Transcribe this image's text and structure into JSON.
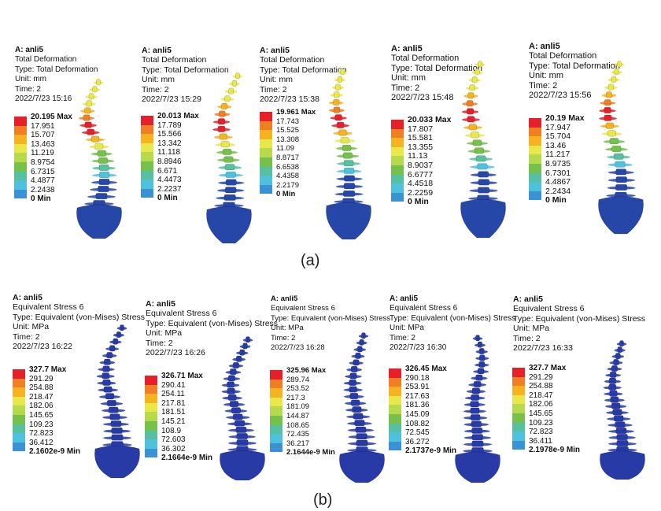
{
  "figure": {
    "row_a": {
      "label": "(a)",
      "panels": [
        {
          "system": "A: anli5",
          "title": "Total Deformation",
          "type": "Type: Total Deformation",
          "unit": "Unit: mm",
          "time": "Time: 2",
          "timestamp": "2022/7/23 15:16",
          "legend": [
            "20.195 Max",
            "17.951",
            "15.707",
            "13.463",
            "11.219",
            "8.9754",
            "6.7315",
            "4.4877",
            "2.2438",
            "0 Min"
          ]
        },
        {
          "system": "A: anli5",
          "title": "Total Deformation",
          "type": "Type: Total Deformation",
          "unit": "Unit: mm",
          "time": "Time: 2",
          "timestamp": "2022/7/23 15:29",
          "legend": [
            "20.013 Max",
            "17.789",
            "15.566",
            "13.342",
            "11.118",
            "8.8946",
            "6.671",
            "4.4473",
            "2.2237",
            "0 Min"
          ]
        },
        {
          "system": "A: anli5",
          "title": "Total Deformation",
          "type": "Type: Total Deformation",
          "unit": "Unit: mm",
          "time": "Time: 2",
          "timestamp": "2022/7/23 15:38",
          "legend": [
            "19.961 Max",
            "17.743",
            "15.525",
            "13.308",
            "11.09",
            "8.8717",
            "6.6538",
            "4.4358",
            "2.2179",
            "0 Min"
          ]
        },
        {
          "system": "A: anli5",
          "title": "Total Deformation",
          "type": "Type: Total Deformation",
          "unit": "Unit: mm",
          "time": "Time: 2",
          "timestamp": "2022/7/23 15:48",
          "legend": [
            "20.033 Max",
            "17.807",
            "15.581",
            "13.355",
            "11.13",
            "8.9037",
            "6.6777",
            "4.4518",
            "2.2259",
            "0 Min"
          ]
        },
        {
          "system": "A: anli5",
          "title": "Total Deformation",
          "type": "Type: Total Deformation",
          "unit": "Unit: mm",
          "time": "Time: 2",
          "timestamp": "2022/7/23 15:56",
          "legend": [
            "20.19 Max",
            "17.947",
            "15.704",
            "13.46",
            "11.217",
            "8.9735",
            "6.7301",
            "4.4867",
            "2.2434",
            "0 Min"
          ]
        }
      ]
    },
    "row_b": {
      "label": "(b)",
      "panels": [
        {
          "system": "A: anli5",
          "title": "Equivalent Stress 6",
          "type": "Type: Equivalent (von-Mises) Stress",
          "unit": "Unit: MPa",
          "time": "Time: 2",
          "timestamp": "2022/7/23 16:22",
          "legend": [
            "327.7 Max",
            "291.29",
            "254.88",
            "218.47",
            "182.06",
            "145.65",
            "109.23",
            "72.823",
            "36.412",
            "2.1602e-9 Min"
          ]
        },
        {
          "system": "A: anli5",
          "title": "Equivalent Stress 6",
          "type": "Type: Equivalent (von-Mises) Stress",
          "unit": "Unit: MPa",
          "time": "Time: 2",
          "timestamp": "2022/7/23 16:26",
          "legend": [
            "326.71 Max",
            "290.41",
            "254.11",
            "217.81",
            "181.51",
            "145.21",
            "108.9",
            "72.603",
            "36.302",
            "2.1664e-9 Min"
          ]
        },
        {
          "system": "A: anli5",
          "title": "Equivalent Stress 6",
          "type": "Type: Equivalent (von-Mises) Stress",
          "unit": "Unit: MPa",
          "time": "Time: 2",
          "timestamp": "2022/7/23 16:28",
          "legend": [
            "325.96 Max",
            "289.74",
            "253.52",
            "217.3",
            "181.09",
            "144.87",
            "108.65",
            "72.435",
            "36.217",
            "2.1644e-9 Min"
          ]
        },
        {
          "system": "A: anli5",
          "title": "Equivalent Stress 6",
          "type": "Type: Equivalent (von-Mises) Stress",
          "unit": "Unit: MPa",
          "time": "Time: 2",
          "timestamp": "2022/7/23 16:30",
          "legend": [
            "326.45 Max",
            "290.18",
            "253.91",
            "217.63",
            "181.36",
            "145.09",
            "108.82",
            "72.545",
            "36.272",
            "2.1737e-9 Min"
          ]
        },
        {
          "system": "A: anli5",
          "title": "Equivalent Stress 6",
          "type": "Type: Equivalent (von-Mises) Stress",
          "unit": "Unit: MPa",
          "time": "Time: 2",
          "timestamp": "2022/7/23 16:33",
          "legend": [
            "327.7 Max",
            "291.29",
            "254.88",
            "218.47",
            "182.06",
            "145.65",
            "109.23",
            "72.823",
            "36.411",
            "2.1978e-9 Min"
          ]
        }
      ]
    }
  },
  "colors": {
    "scale": [
      "#e5202a",
      "#f07e22",
      "#f5b31f",
      "#e9e84a",
      "#b7d94c",
      "#76c04c",
      "#56c0a0",
      "#4ec2dd",
      "#3a92d4",
      "#2747a8"
    ],
    "spine_stress": "#273aa6"
  }
}
